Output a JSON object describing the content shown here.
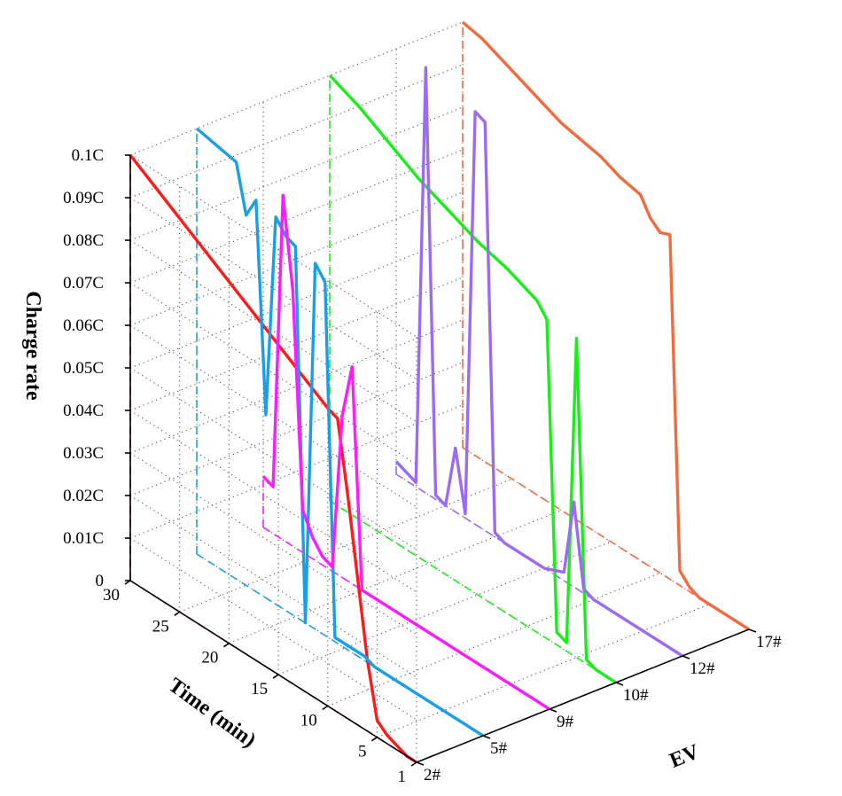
{
  "chart_data": {
    "type": "line",
    "view": "3d-waterfall",
    "zlabel": "Charge rate",
    "xlabel": "Time (min)",
    "ylabel": "EV",
    "z_ticks": [
      "0",
      "0.01C",
      "0.02C",
      "0.03C",
      "0.04C",
      "0.05C",
      "0.06C",
      "0.07C",
      "0.08C",
      "0.09C",
      "0.1C"
    ],
    "x_ticks": [
      "30",
      "25",
      "20",
      "15",
      "10",
      "5",
      "1"
    ],
    "categories": [
      "2#",
      "5#",
      "9#",
      "10#",
      "12#",
      "17#"
    ],
    "zlim": [
      0,
      0.1
    ],
    "xlim": [
      1,
      30
    ],
    "grid": true,
    "series": [
      {
        "name": "2#",
        "color": "#ff1a1a",
        "points": [
          [
            30,
            0.1
          ],
          [
            28,
            0.097
          ],
          [
            26,
            0.094
          ],
          [
            24,
            0.091
          ],
          [
            22,
            0.088
          ],
          [
            20,
            0.085
          ],
          [
            18,
            0.082
          ],
          [
            16,
            0.079
          ],
          [
            14,
            0.076
          ],
          [
            12,
            0.073
          ],
          [
            10,
            0.07
          ],
          [
            9,
            0.069
          ],
          [
            8,
            0.053
          ],
          [
            7,
            0.035
          ],
          [
            6,
            0.017
          ],
          [
            5,
            0.004
          ],
          [
            4,
            0.002
          ],
          [
            3,
            0.001
          ],
          [
            2,
            0
          ],
          [
            1,
            0
          ]
        ]
      },
      {
        "name": "5#",
        "color": "#1a9fe6",
        "points": [
          [
            30,
            0.1
          ],
          [
            28,
            0.099
          ],
          [
            26,
            0.098
          ],
          [
            25,
            0.087
          ],
          [
            24,
            0.092
          ],
          [
            23,
            0.043
          ],
          [
            22,
            0.091
          ],
          [
            21,
            0.088
          ],
          [
            20,
            0.087
          ],
          [
            19,
            0
          ],
          [
            18,
            0.086
          ],
          [
            17,
            0.083
          ],
          [
            16,
            0.001
          ],
          [
            15,
            0.001
          ],
          [
            14,
            0.001
          ],
          [
            13,
            0.001
          ],
          [
            12,
            0
          ],
          [
            11,
            0
          ],
          [
            10,
            0
          ],
          [
            9,
            0
          ],
          [
            8,
            0
          ],
          [
            7,
            0
          ],
          [
            6,
            0
          ],
          [
            5,
            0
          ],
          [
            4,
            0
          ],
          [
            3,
            0
          ],
          [
            2,
            0
          ],
          [
            1,
            0
          ]
        ]
      },
      {
        "name": "9#",
        "color": "#ff1aff",
        "points": [
          [
            30,
            0.012
          ],
          [
            29,
            0.011
          ],
          [
            28,
            0.081
          ],
          [
            27,
            0.06
          ],
          [
            26,
            0.01
          ],
          [
            25,
            0.005
          ],
          [
            24,
            0.002
          ],
          [
            23,
            0.001
          ],
          [
            22,
            0.038
          ],
          [
            21,
            0.051
          ],
          [
            20,
            0
          ],
          [
            19,
            0
          ],
          [
            18,
            0
          ],
          [
            17,
            0
          ],
          [
            16,
            0
          ],
          [
            15,
            0
          ],
          [
            14,
            0
          ],
          [
            13,
            0
          ],
          [
            12,
            0
          ],
          [
            11,
            0
          ],
          [
            10,
            0
          ],
          [
            9,
            0
          ],
          [
            8,
            0
          ],
          [
            7,
            0
          ],
          [
            6,
            0
          ],
          [
            5,
            0
          ],
          [
            4,
            0
          ],
          [
            3,
            0
          ],
          [
            2,
            0
          ],
          [
            1,
            0
          ]
        ]
      },
      {
        "name": "10#",
        "color": "#1aee1a",
        "points": [
          [
            30,
            0.1
          ],
          [
            27,
            0.097
          ],
          [
            24,
            0.093
          ],
          [
            21,
            0.089
          ],
          [
            18,
            0.086
          ],
          [
            15,
            0.083
          ],
          [
            12,
            0.081
          ],
          [
            10,
            0.079
          ],
          [
            9,
            0.078
          ],
          [
            8,
            0.075
          ],
          [
            7,
            0.003
          ],
          [
            6,
            0.002
          ],
          [
            5,
            0.075
          ],
          [
            4,
            0.001
          ],
          [
            3,
            0
          ],
          [
            2,
            0
          ],
          [
            1,
            0
          ]
        ]
      },
      {
        "name": "12#",
        "color": "#9b6cf2",
        "points": [
          [
            30,
            0.003
          ],
          [
            28,
            0.001
          ],
          [
            27,
            0.1
          ],
          [
            26,
            0.001
          ],
          [
            25,
            0
          ],
          [
            24,
            0.015
          ],
          [
            23,
            0.001
          ],
          [
            22,
            0.097
          ],
          [
            21,
            0.096
          ],
          [
            20,
            0.001
          ],
          [
            19,
            0
          ],
          [
            18,
            0
          ],
          [
            17,
            0
          ],
          [
            16,
            0
          ],
          [
            15,
            0
          ],
          [
            14,
            0.001
          ],
          [
            13,
            0.002
          ],
          [
            12,
            0.02
          ],
          [
            11,
            0.001
          ],
          [
            10,
            0
          ],
          [
            9,
            0
          ],
          [
            8,
            0
          ],
          [
            7,
            0
          ],
          [
            6,
            0
          ],
          [
            5,
            0
          ],
          [
            4,
            0
          ],
          [
            3,
            0
          ],
          [
            2,
            0
          ],
          [
            1,
            0
          ]
        ]
      },
      {
        "name": "17#",
        "color": "#f26b3f",
        "points": [
          [
            30,
            0.1
          ],
          [
            28,
            0.099
          ],
          [
            26,
            0.097
          ],
          [
            24,
            0.095
          ],
          [
            22,
            0.093
          ],
          [
            20,
            0.091
          ],
          [
            18,
            0.09
          ],
          [
            16,
            0.089
          ],
          [
            14,
            0.087
          ],
          [
            12,
            0.086
          ],
          [
            11,
            0.082
          ],
          [
            10,
            0.08
          ],
          [
            9,
            0.081
          ],
          [
            8,
            0.0035
          ],
          [
            7,
            0.001
          ],
          [
            6,
            0
          ],
          [
            5,
            0
          ],
          [
            4,
            0
          ],
          [
            3,
            0
          ],
          [
            2,
            0
          ],
          [
            1,
            0
          ]
        ]
      }
    ]
  }
}
